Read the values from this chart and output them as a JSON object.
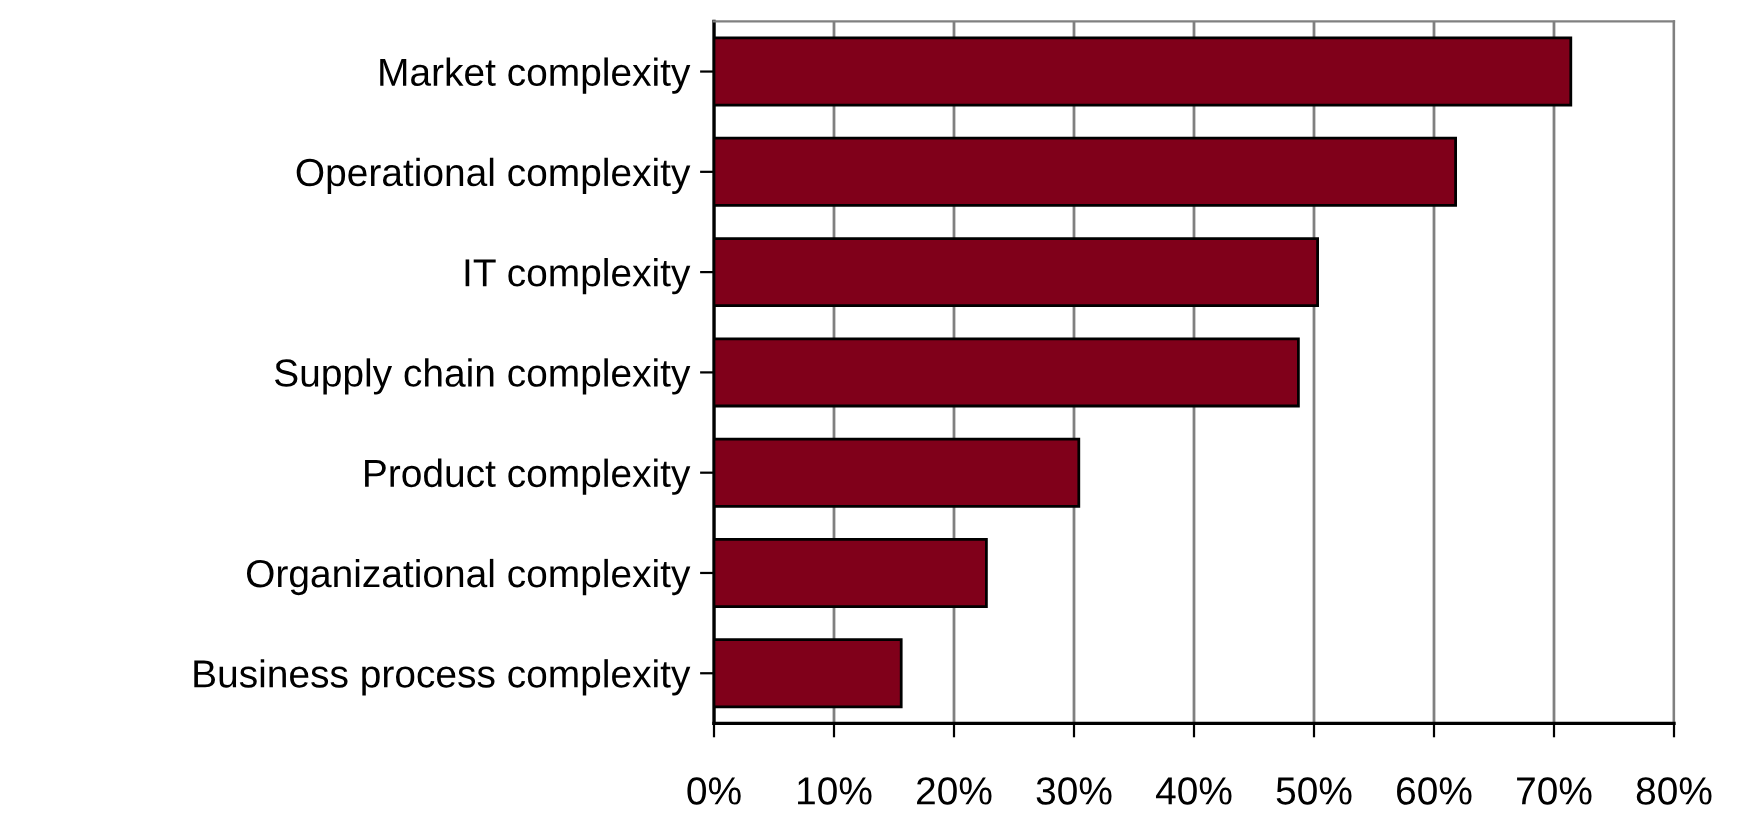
{
  "chart_data": {
    "type": "bar",
    "orientation": "horizontal",
    "categories": [
      "Market complexity",
      "Operational complexity",
      "IT complexity",
      "Supply chain complexity",
      "Product complexity",
      "Organizational complexity",
      "Business process complexity"
    ],
    "values": [
      71.4,
      61.8,
      50.3,
      48.7,
      30.4,
      22.7,
      15.6
    ],
    "color": "#80001a",
    "xlim": [
      0,
      80
    ],
    "xticks": [
      {
        "value": 0,
        "label": "0%"
      },
      {
        "value": 10,
        "label": "10%"
      },
      {
        "value": 20,
        "label": "20%"
      },
      {
        "value": 30,
        "label": "30%"
      },
      {
        "value": 40,
        "label": "40%"
      },
      {
        "value": 50,
        "label": "50%"
      },
      {
        "value": 60,
        "label": "60%"
      },
      {
        "value": 70,
        "label": "70%"
      },
      {
        "value": 80,
        "label": "80%"
      }
    ],
    "grid": "x"
  }
}
